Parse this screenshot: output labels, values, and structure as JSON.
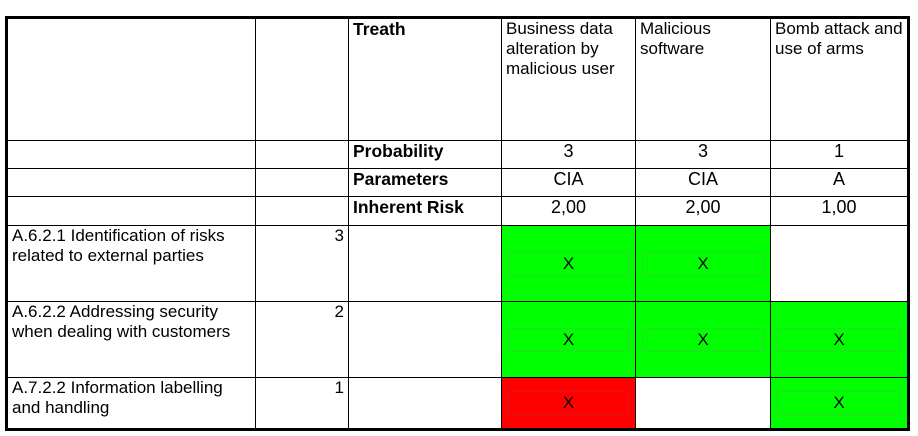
{
  "table": {
    "header": {
      "threat_label": "Treath",
      "threats": [
        "Business data alteration by malicious user",
        "Malicious software",
        "Bomb attack and use of arms"
      ]
    },
    "summary_rows": [
      {
        "label": "Probability",
        "values": [
          "3",
          "3",
          "1"
        ]
      },
      {
        "label": "Parameters",
        "values": [
          "CIA",
          "CIA",
          "A"
        ]
      },
      {
        "label": "Inherent Risk",
        "values": [
          "2,00",
          "2,00",
          "1,00"
        ]
      }
    ],
    "controls": [
      {
        "name": "A.6.2.1 Identification of risks related to external parties",
        "score": "3",
        "cells": [
          {
            "mark": "X",
            "status": "green"
          },
          {
            "mark": "X",
            "status": "green"
          },
          {
            "mark": "",
            "status": "white"
          }
        ]
      },
      {
        "name": "A.6.2.2 Addressing security when dealing with customers",
        "score": "2",
        "cells": [
          {
            "mark": "X",
            "status": "green"
          },
          {
            "mark": "X",
            "status": "green"
          },
          {
            "mark": "X",
            "status": "green"
          }
        ]
      },
      {
        "name": "A.7.2.2 Information labelling and handling",
        "score": "1",
        "cells": [
          {
            "mark": "X",
            "status": "red"
          },
          {
            "mark": "",
            "status": "white"
          },
          {
            "mark": "X",
            "status": "green"
          }
        ]
      }
    ],
    "colors": {
      "green": "#00ff00",
      "red": "#ff0000",
      "white": "#ffffff"
    }
  }
}
